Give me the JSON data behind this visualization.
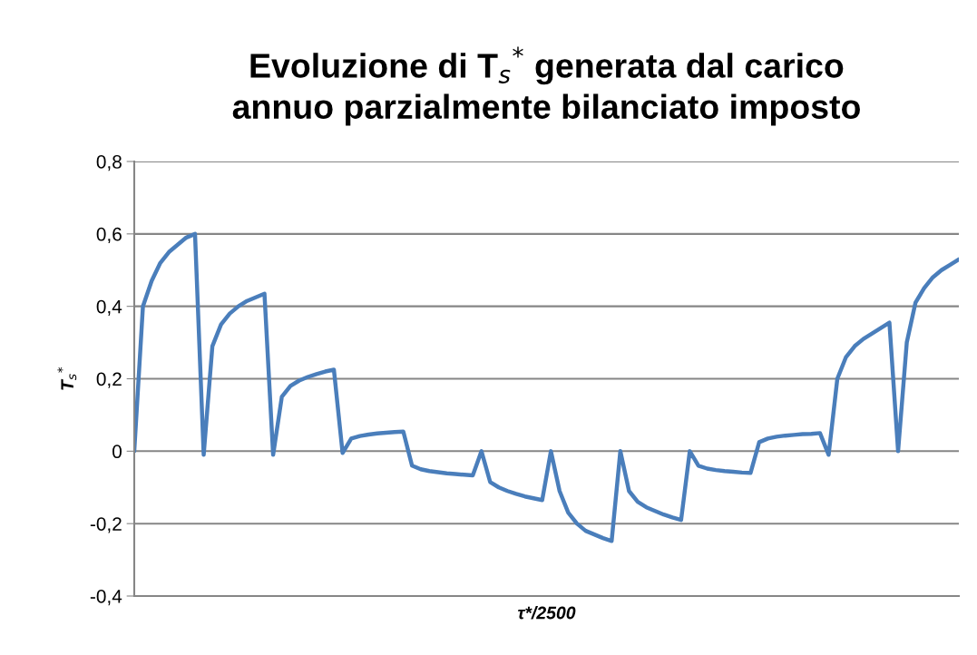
{
  "chart_data": {
    "type": "line",
    "title": "Evoluzione di T$_{s}$$^{*}$ generata dal carico\nannuo parzialmente bilanciato imposto",
    "xlabel": "τ*/2500",
    "ylabel": "T$_{s}$$^{*}$",
    "categories": [
      null,
      null,
      null,
      null,
      null,
      null,
      null,
      null,
      null,
      null,
      null,
      null,
      null,
      null,
      null,
      null,
      null,
      null,
      null,
      null,
      null,
      null,
      null,
      null,
      null,
      null,
      null,
      null,
      null,
      null,
      null,
      null,
      null,
      null,
      null,
      null,
      null,
      null,
      null,
      null,
      null,
      null,
      null,
      null,
      null,
      null,
      null,
      null,
      null,
      null,
      null,
      null,
      null,
      null,
      null,
      null,
      null,
      null,
      null,
      null,
      null,
      null,
      null,
      null,
      null,
      null,
      null,
      null,
      null,
      null,
      null,
      null,
      null,
      null,
      null,
      null,
      null,
      null,
      null,
      null,
      null,
      null,
      null,
      null,
      null,
      null,
      null,
      null,
      null,
      null,
      null,
      null,
      null,
      null,
      null,
      null
    ],
    "series": [
      {
        "color": "#4a7ebb",
        "values": [
          0,
          0.4,
          0.47,
          0.52,
          0.55,
          0.57,
          0.59,
          0.6,
          -0.01,
          0.29,
          0.35,
          0.38,
          0.4,
          0.415,
          0.425,
          0.435,
          -0.01,
          0.15,
          0.18,
          0.195,
          0.205,
          0.213,
          0.22,
          0.225,
          -0.005,
          0.035,
          0.042,
          0.046,
          0.049,
          0.051,
          0.053,
          0.054,
          -0.04,
          -0.05,
          -0.055,
          -0.058,
          -0.061,
          -0.063,
          -0.065,
          -0.067,
          0,
          -0.085,
          -0.1,
          -0.11,
          -0.118,
          -0.125,
          -0.13,
          -0.135,
          0,
          -0.11,
          -0.17,
          -0.2,
          -0.22,
          -0.23,
          -0.24,
          -0.248,
          0,
          -0.11,
          -0.14,
          -0.155,
          -0.165,
          -0.175,
          -0.183,
          -0.19,
          0,
          -0.04,
          -0.048,
          -0.052,
          -0.055,
          -0.057,
          -0.059,
          -0.06,
          0.025,
          0.035,
          0.04,
          0.043,
          0.045,
          0.047,
          0.048,
          0.05,
          -0.01,
          0.2,
          0.26,
          0.29,
          0.31,
          0.325,
          0.34,
          0.355,
          0,
          0.3,
          0.41,
          0.45,
          0.48,
          0.5,
          0.515,
          0.53
        ]
      }
    ],
    "ylim": [
      -0.4,
      0.8
    ],
    "yticks": [
      {
        "value": -0.4,
        "label": "-0,4"
      },
      {
        "value": -0.2,
        "label": "-0,2"
      },
      {
        "value": 0,
        "label": "0"
      },
      {
        "value": 0.2,
        "label": "0,2"
      },
      {
        "value": 0.4,
        "label": "0,4"
      },
      {
        "value": 0.6,
        "label": "0,6"
      },
      {
        "value": 0.8,
        "label": "0,8"
      }
    ],
    "grid": "y",
    "tick_labels": "y",
    "marker": "none",
    "line_style": "solid"
  }
}
